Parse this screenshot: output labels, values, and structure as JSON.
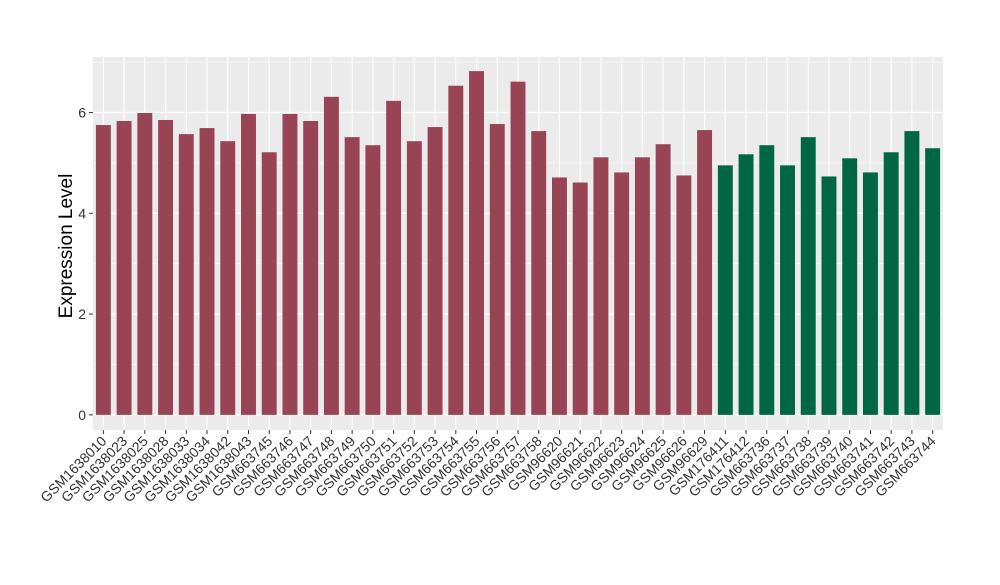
{
  "chart_data": {
    "type": "bar",
    "title": "",
    "xlabel": "",
    "ylabel": "Expression Level",
    "ylim": [
      -0.3,
      7.1
    ],
    "yticks": [
      0,
      2,
      4,
      6
    ],
    "grid": true,
    "panel_color": "#ebebeb",
    "colors": {
      "group_a": "#994455",
      "group_b": "#006644"
    },
    "categories": [
      "GSM1638010",
      "GSM1638023",
      "GSM1638025",
      "GSM1638028",
      "GSM1638033",
      "GSM1638034",
      "GSM1638042",
      "GSM1638043",
      "GSM663745",
      "GSM663746",
      "GSM663747",
      "GSM663748",
      "GSM663749",
      "GSM663750",
      "GSM663751",
      "GSM663752",
      "GSM663753",
      "GSM663754",
      "GSM663755",
      "GSM663756",
      "GSM663757",
      "GSM663758",
      "GSM96620",
      "GSM96621",
      "GSM96622",
      "GSM96623",
      "GSM96624",
      "GSM96625",
      "GSM96626",
      "GSM96629",
      "GSM176411",
      "GSM176412",
      "GSM663736",
      "GSM663737",
      "GSM663738",
      "GSM663739",
      "GSM663740",
      "GSM663741",
      "GSM663742",
      "GSM663743",
      "GSM663744"
    ],
    "values": [
      5.75,
      5.83,
      5.99,
      5.85,
      5.57,
      5.69,
      5.43,
      5.97,
      5.21,
      5.97,
      5.83,
      6.31,
      5.51,
      5.35,
      6.23,
      5.43,
      5.71,
      6.53,
      6.82,
      5.77,
      6.61,
      5.63,
      4.71,
      4.61,
      5.11,
      4.81,
      5.11,
      5.37,
      4.75,
      5.65,
      4.95,
      5.17,
      5.35,
      4.95,
      5.51,
      4.73,
      5.09,
      4.81,
      5.21,
      5.63,
      5.29
    ],
    "groups": [
      "a",
      "a",
      "a",
      "a",
      "a",
      "a",
      "a",
      "a",
      "a",
      "a",
      "a",
      "a",
      "a",
      "a",
      "a",
      "a",
      "a",
      "a",
      "a",
      "a",
      "a",
      "a",
      "a",
      "a",
      "a",
      "a",
      "a",
      "a",
      "a",
      "a",
      "b",
      "b",
      "b",
      "b",
      "b",
      "b",
      "b",
      "b",
      "b",
      "b",
      "b"
    ]
  }
}
